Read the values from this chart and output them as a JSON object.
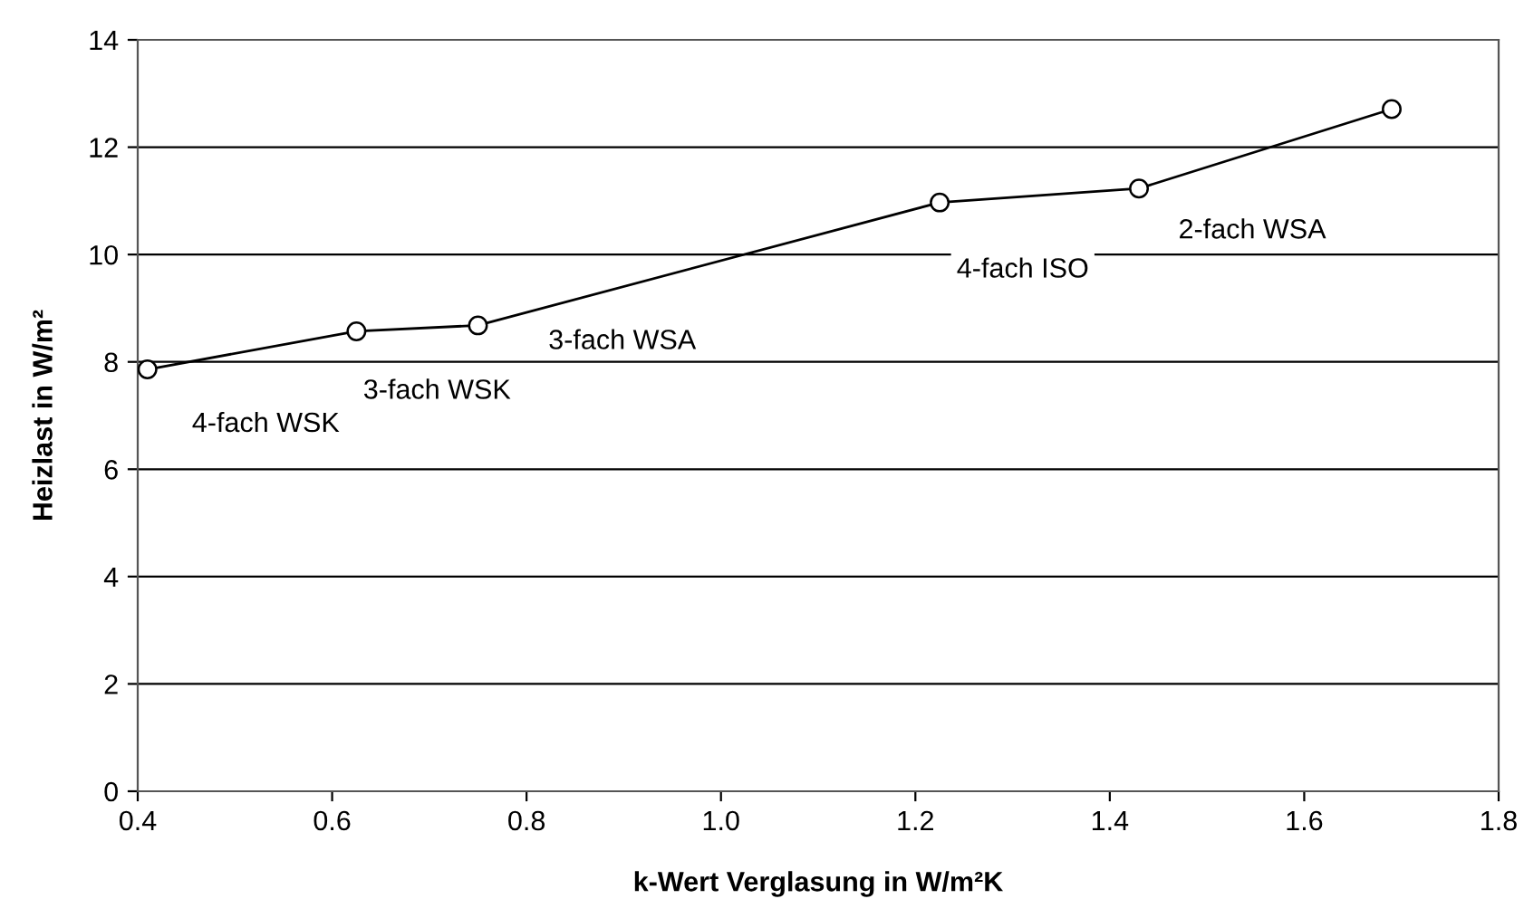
{
  "chart_data": {
    "type": "line",
    "xlabel": "k-Wert Verglasung in W/m²K",
    "ylabel": "Heizlast in W/m²",
    "x": [
      0.41,
      0.625,
      0.75,
      1.225,
      1.43,
      1.69
    ],
    "series": [
      {
        "color": "#000000",
        "values": [
          7.86,
          8.57,
          8.68,
          10.97,
          11.23,
          12.71
        ]
      }
    ],
    "xlim": [
      0.4,
      1.8
    ],
    "xticks": [
      {
        "value": 0.4,
        "label": "0.4"
      },
      {
        "value": 0.6,
        "label": "0.6"
      },
      {
        "value": 0.8,
        "label": "0.8"
      },
      {
        "value": 1.0,
        "label": "1.0"
      },
      {
        "value": 1.2,
        "label": "1.2"
      },
      {
        "value": 1.4,
        "label": "1.4"
      },
      {
        "value": 1.6,
        "label": "1.6"
      },
      {
        "value": 1.8,
        "label": "1.8"
      }
    ],
    "ylim": [
      0,
      14
    ],
    "yticks": [
      0,
      2,
      4,
      6,
      8,
      10,
      12,
      14
    ],
    "grid": "y",
    "marker": "circle",
    "line_style": "solid",
    "annotations": [
      {
        "text": "4-fach WSK",
        "x": 0.41,
        "y": 7.86
      },
      {
        "text": "3-fach WSK",
        "x": 0.625,
        "y": 8.57
      },
      "3-fach WSA",
      {
        "text": "4-fach ISO",
        "x": 1.225,
        "y": 10.97
      },
      {
        "text": "2-fach WSA",
        "x": 1.43,
        "y": 11.23
      }
    ]
  }
}
